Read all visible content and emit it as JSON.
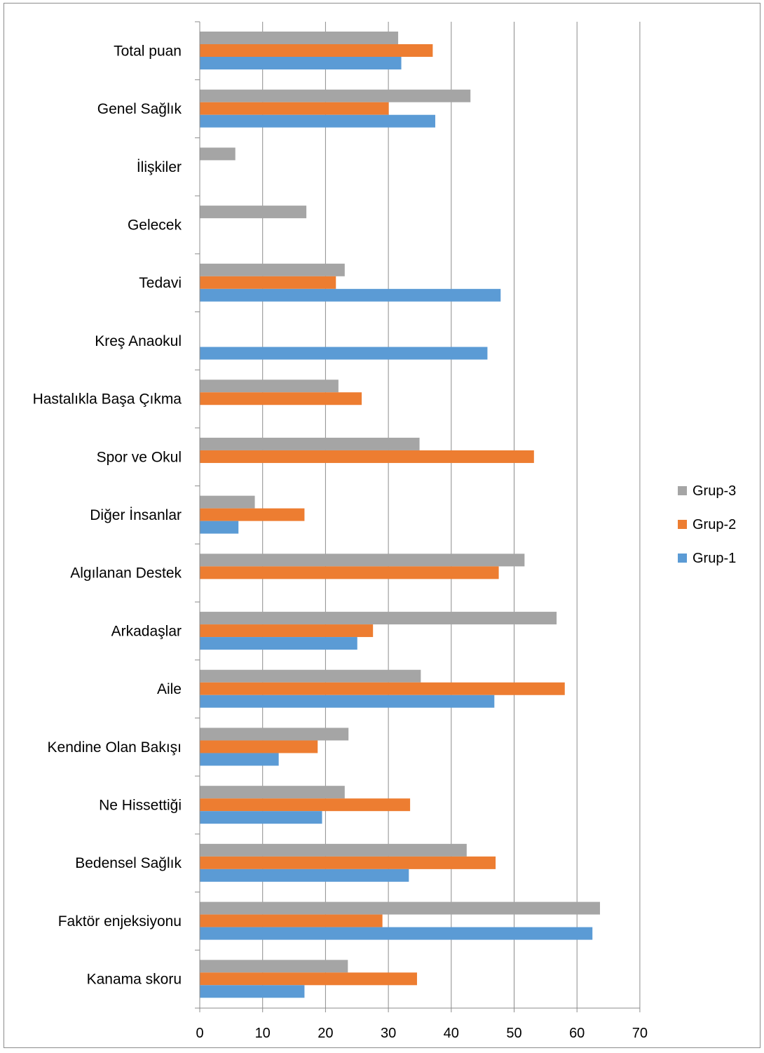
{
  "chart_data": {
    "type": "bar",
    "orientation": "horizontal",
    "categories": [
      "Total puan",
      "Genel Sağlık",
      "İlişkiler",
      "Gelecek",
      "Tedavi",
      "Kreş Anaokul",
      "Hastalıkla Başa Çıkma",
      "Spor ve Okul",
      "Diğer İnsanlar",
      "Algılanan Destek",
      "Arkadaşlar",
      "Aile",
      "Kendine Olan Bakışı",
      "Ne Hissettiği",
      "Bedensel Sağlık",
      "Faktör enjeksiyonu",
      "Kanama skoru"
    ],
    "series": [
      {
        "name": "Grup-3",
        "color": "#a5a5a5",
        "values": [
          31.5,
          43,
          5.6,
          16.9,
          23,
          null,
          22,
          34.9,
          8.7,
          51.6,
          56.7,
          35.1,
          23.6,
          23,
          42.4,
          63.6,
          23.5
        ]
      },
      {
        "name": "Grup-2",
        "color": "#ed7d31",
        "values": [
          37,
          30,
          null,
          null,
          21.6,
          null,
          25.7,
          53.1,
          16.6,
          47.5,
          27.5,
          58,
          18.7,
          33.4,
          47,
          29,
          34.5
        ]
      },
      {
        "name": "Grup-1",
        "color": "#5b9bd5",
        "values": [
          32,
          37.4,
          null,
          null,
          47.8,
          45.7,
          null,
          null,
          6.1,
          null,
          25,
          46.8,
          12.5,
          19.4,
          33.2,
          62.4,
          16.6
        ]
      }
    ],
    "xlim": [
      0,
      70
    ],
    "xticks": [
      "0",
      "10",
      "20",
      "30",
      "40",
      "50",
      "60",
      "70"
    ],
    "grid": true,
    "legend_position": "right",
    "title": "",
    "xlabel": "",
    "ylabel": ""
  }
}
